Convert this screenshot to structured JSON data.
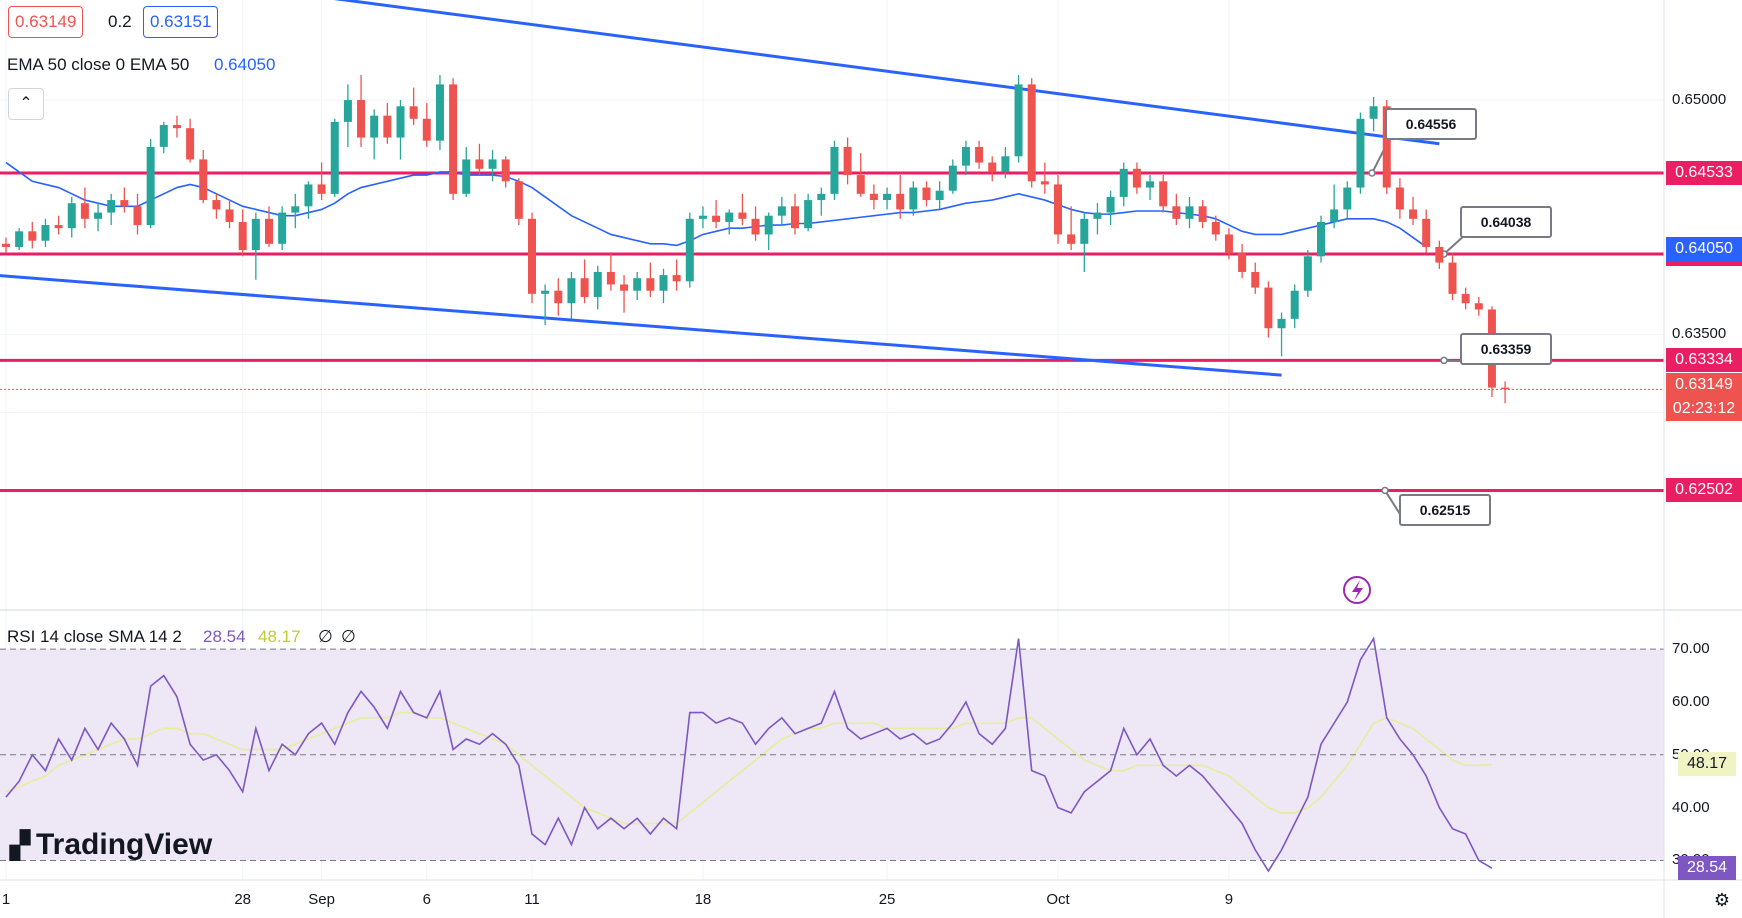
{
  "header": {
    "bid": "0.63149",
    "spread": "0.2",
    "ask": "0.63151",
    "ema_label": "EMA 50 close 0 EMA 50",
    "ema_value": "0.64050",
    "collapse_icon": "chevron-up-icon"
  },
  "rsi_header": {
    "label": "RSI 14 close SMA 14 2",
    "rsi_value": "28.54",
    "sma_value": "48.17",
    "extra1": "∅",
    "extra2": "∅"
  },
  "price_axis": {
    "ticks": [
      "0.65000",
      "0.63500"
    ],
    "tick_values": [
      0.65,
      0.635
    ],
    "range": [
      0.6175,
      0.6564
    ]
  },
  "levels": [
    {
      "value": 0.64533,
      "label": "0.64533",
      "color": "#e91e63"
    },
    {
      "value": 0.64015,
      "label": "0.64015",
      "color": "#e91e63"
    },
    {
      "value": 0.63334,
      "label": "0.63334",
      "color": "#e91e63"
    },
    {
      "value": 0.62502,
      "label": "0.62502",
      "color": "#e91e63"
    }
  ],
  "callouts": [
    "0.64556",
    "0.64038",
    "0.63359",
    "0.62515"
  ],
  "ema_axis_label": "0.64050",
  "last_price": {
    "value": 0.63149,
    "label": "0.63149",
    "countdown": "02:23:12",
    "color": "#ef5350"
  },
  "x_axis": {
    "ticks": [
      "1",
      "28",
      "Sep",
      "6",
      "11",
      "18",
      "25",
      "Oct",
      "9"
    ],
    "tick_index": [
      0,
      18,
      24,
      32,
      40,
      53,
      67,
      80,
      93
    ]
  },
  "rsi_axis": {
    "ticks": [
      "70.00",
      "60.00",
      "50.00",
      "40.00",
      "30.00"
    ],
    "tick_values": [
      70,
      60,
      50,
      40,
      30
    ],
    "range": [
      26.3,
      75.9
    ],
    "rsi_label": "28.54",
    "sma_label": "48.17"
  },
  "colors": {
    "bull": "#26a69a",
    "bear": "#ef5350",
    "ema": "#2962ff",
    "channel": "#2962ff",
    "level": "#e91e63",
    "rsi": "#7e57c2",
    "rsi_sma": "#e6ee9c",
    "rsi_band": "#ede7f6"
  },
  "logo": "TradingView",
  "chart_data": {
    "type": "candlestick",
    "instrument_price_axis": "price",
    "candles_ohlc": [
      [
        0.6408,
        0.6412,
        0.6402,
        0.6406
      ],
      [
        0.6406,
        0.6418,
        0.6404,
        0.6416
      ],
      [
        0.6416,
        0.6422,
        0.6405,
        0.641
      ],
      [
        0.641,
        0.6424,
        0.6406,
        0.642
      ],
      [
        0.642,
        0.6426,
        0.6414,
        0.6418
      ],
      [
        0.6418,
        0.6438,
        0.6412,
        0.6434
      ],
      [
        0.6434,
        0.6444,
        0.6418,
        0.6424
      ],
      [
        0.6424,
        0.6434,
        0.6416,
        0.6428
      ],
      [
        0.6428,
        0.644,
        0.642,
        0.6436
      ],
      [
        0.6436,
        0.6444,
        0.6428,
        0.6432
      ],
      [
        0.6432,
        0.644,
        0.6414,
        0.642
      ],
      [
        0.642,
        0.6475,
        0.6418,
        0.647
      ],
      [
        0.647,
        0.6486,
        0.6466,
        0.6484
      ],
      [
        0.6484,
        0.649,
        0.6476,
        0.6482
      ],
      [
        0.6482,
        0.6488,
        0.646,
        0.6462
      ],
      [
        0.6462,
        0.6468,
        0.6434,
        0.6436
      ],
      [
        0.6436,
        0.644,
        0.6424,
        0.643
      ],
      [
        0.643,
        0.6436,
        0.6418,
        0.6422
      ],
      [
        0.6422,
        0.643,
        0.64,
        0.6404
      ],
      [
        0.6404,
        0.6428,
        0.6385,
        0.6424
      ],
      [
        0.6424,
        0.6432,
        0.6406,
        0.6408
      ],
      [
        0.6408,
        0.6432,
        0.6404,
        0.6428
      ],
      [
        0.6428,
        0.644,
        0.6418,
        0.6432
      ],
      [
        0.6432,
        0.6448,
        0.6424,
        0.6446
      ],
      [
        0.6446,
        0.646,
        0.6436,
        0.644
      ],
      [
        0.644,
        0.6488,
        0.6438,
        0.6486
      ],
      [
        0.6486,
        0.651,
        0.647,
        0.65
      ],
      [
        0.65,
        0.6516,
        0.647,
        0.6476
      ],
      [
        0.6476,
        0.6494,
        0.6462,
        0.649
      ],
      [
        0.649,
        0.6498,
        0.6472,
        0.6476
      ],
      [
        0.6476,
        0.65,
        0.6462,
        0.6496
      ],
      [
        0.6496,
        0.6508,
        0.6484,
        0.6488
      ],
      [
        0.6488,
        0.6498,
        0.647,
        0.6474
      ],
      [
        0.6474,
        0.6516,
        0.6468,
        0.651
      ],
      [
        0.651,
        0.6514,
        0.6436,
        0.644
      ],
      [
        0.644,
        0.647,
        0.6438,
        0.6462
      ],
      [
        0.6462,
        0.6472,
        0.6452,
        0.6456
      ],
      [
        0.6456,
        0.6468,
        0.6448,
        0.6462
      ],
      [
        0.6462,
        0.6464,
        0.6444,
        0.6448
      ],
      [
        0.6448,
        0.645,
        0.642,
        0.6424
      ],
      [
        0.6424,
        0.6428,
        0.637,
        0.6376
      ],
      [
        0.6376,
        0.6382,
        0.6356,
        0.6378
      ],
      [
        0.6378,
        0.6386,
        0.6362,
        0.637
      ],
      [
        0.637,
        0.639,
        0.636,
        0.6386
      ],
      [
        0.6386,
        0.6398,
        0.637,
        0.6374
      ],
      [
        0.6374,
        0.6394,
        0.6366,
        0.639
      ],
      [
        0.639,
        0.6402,
        0.6378,
        0.6382
      ],
      [
        0.6382,
        0.6388,
        0.6364,
        0.6378
      ],
      [
        0.6378,
        0.639,
        0.6372,
        0.6386
      ],
      [
        0.6386,
        0.6396,
        0.6374,
        0.6378
      ],
      [
        0.6378,
        0.6392,
        0.637,
        0.6388
      ],
      [
        0.6388,
        0.6398,
        0.6378,
        0.6384
      ],
      [
        0.6384,
        0.6428,
        0.638,
        0.6424
      ],
      [
        0.6424,
        0.6432,
        0.6418,
        0.6426
      ],
      [
        0.6426,
        0.6436,
        0.6418,
        0.6422
      ],
      [
        0.6422,
        0.643,
        0.6414,
        0.6428
      ],
      [
        0.6428,
        0.644,
        0.642,
        0.6424
      ],
      [
        0.6424,
        0.6432,
        0.641,
        0.6414
      ],
      [
        0.6414,
        0.6428,
        0.6404,
        0.6426
      ],
      [
        0.6426,
        0.6438,
        0.642,
        0.6432
      ],
      [
        0.6432,
        0.644,
        0.6414,
        0.6418
      ],
      [
        0.6418,
        0.644,
        0.6416,
        0.6436
      ],
      [
        0.6436,
        0.6444,
        0.6426,
        0.644
      ],
      [
        0.644,
        0.6474,
        0.6436,
        0.647
      ],
      [
        0.647,
        0.6476,
        0.6446,
        0.6452
      ],
      [
        0.6452,
        0.6466,
        0.6438,
        0.644
      ],
      [
        0.644,
        0.6446,
        0.643,
        0.6436
      ],
      [
        0.6436,
        0.6444,
        0.643,
        0.644
      ],
      [
        0.644,
        0.6452,
        0.6424,
        0.643
      ],
      [
        0.643,
        0.6448,
        0.6426,
        0.6444
      ],
      [
        0.6444,
        0.6448,
        0.6432,
        0.6436
      ],
      [
        0.6436,
        0.6448,
        0.643,
        0.6442
      ],
      [
        0.6442,
        0.6462,
        0.644,
        0.6458
      ],
      [
        0.6458,
        0.6474,
        0.6452,
        0.647
      ],
      [
        0.647,
        0.6474,
        0.6456,
        0.646
      ],
      [
        0.646,
        0.6464,
        0.6448,
        0.6454
      ],
      [
        0.6454,
        0.647,
        0.645,
        0.6464
      ],
      [
        0.6464,
        0.6516,
        0.646,
        0.651
      ],
      [
        0.651,
        0.6514,
        0.6444,
        0.6448
      ],
      [
        0.6448,
        0.646,
        0.644,
        0.6446
      ],
      [
        0.6446,
        0.6452,
        0.6408,
        0.6414
      ],
      [
        0.6414,
        0.6432,
        0.6404,
        0.6408
      ],
      [
        0.6408,
        0.6428,
        0.639,
        0.6424
      ],
      [
        0.6424,
        0.6434,
        0.6414,
        0.6428
      ],
      [
        0.6428,
        0.6442,
        0.642,
        0.6438
      ],
      [
        0.6438,
        0.646,
        0.6432,
        0.6456
      ],
      [
        0.6456,
        0.646,
        0.644,
        0.6444
      ],
      [
        0.6444,
        0.6452,
        0.6436,
        0.6448
      ],
      [
        0.6448,
        0.6452,
        0.6428,
        0.6432
      ],
      [
        0.6432,
        0.644,
        0.642,
        0.6424
      ],
      [
        0.6424,
        0.6438,
        0.6418,
        0.6432
      ],
      [
        0.6432,
        0.6436,
        0.6418,
        0.6422
      ],
      [
        0.6422,
        0.6426,
        0.641,
        0.6414
      ],
      [
        0.6414,
        0.6418,
        0.6398,
        0.6402
      ],
      [
        0.6402,
        0.6408,
        0.6386,
        0.639
      ],
      [
        0.639,
        0.6396,
        0.6376,
        0.638
      ],
      [
        0.638,
        0.6384,
        0.6348,
        0.6354
      ],
      [
        0.6354,
        0.6364,
        0.6336,
        0.636
      ],
      [
        0.636,
        0.6382,
        0.6354,
        0.6378
      ],
      [
        0.6378,
        0.6404,
        0.6374,
        0.64
      ],
      [
        0.64,
        0.6426,
        0.6396,
        0.6422
      ],
      [
        0.6422,
        0.6446,
        0.6418,
        0.643
      ],
      [
        0.643,
        0.6448,
        0.6424,
        0.6444
      ],
      [
        0.6444,
        0.6492,
        0.644,
        0.6488
      ],
      [
        0.6488,
        0.6502,
        0.648,
        0.6496
      ],
      [
        0.6496,
        0.65,
        0.644,
        0.6444
      ],
      [
        0.6444,
        0.645,
        0.6424,
        0.643
      ],
      [
        0.643,
        0.6438,
        0.642,
        0.6424
      ],
      [
        0.6424,
        0.643,
        0.6402,
        0.6406
      ],
      [
        0.6406,
        0.641,
        0.6392,
        0.6396
      ],
      [
        0.6396,
        0.6402,
        0.6372,
        0.6376
      ],
      [
        0.6376,
        0.638,
        0.6366,
        0.637
      ],
      [
        0.637,
        0.6374,
        0.6362,
        0.6366
      ],
      [
        0.6366,
        0.6368,
        0.631,
        0.6316
      ],
      [
        0.6316,
        0.632,
        0.6306,
        0.6315
      ]
    ],
    "ema_50": [
      0.646,
      0.6454,
      0.6448,
      0.6446,
      0.6444,
      0.644,
      0.6436,
      0.6434,
      0.6432,
      0.6432,
      0.6432,
      0.6436,
      0.644,
      0.6444,
      0.6446,
      0.6444,
      0.644,
      0.6436,
      0.6432,
      0.643,
      0.6428,
      0.6426,
      0.6426,
      0.6428,
      0.643,
      0.6434,
      0.644,
      0.6444,
      0.6446,
      0.6448,
      0.645,
      0.6452,
      0.6452,
      0.6454,
      0.6454,
      0.6452,
      0.6452,
      0.6452,
      0.6451,
      0.6448,
      0.6444,
      0.6438,
      0.6432,
      0.6426,
      0.6422,
      0.6418,
      0.6414,
      0.6412,
      0.641,
      0.6408,
      0.6408,
      0.6407,
      0.641,
      0.6414,
      0.6416,
      0.6418,
      0.6418,
      0.6419,
      0.642,
      0.642,
      0.6421,
      0.6421,
      0.6422,
      0.6423,
      0.6424,
      0.6425,
      0.6426,
      0.6427,
      0.6428,
      0.6428,
      0.6429,
      0.643,
      0.6432,
      0.6434,
      0.6435,
      0.6436,
      0.6438,
      0.644,
      0.6438,
      0.6436,
      0.6433,
      0.643,
      0.6428,
      0.6427,
      0.6427,
      0.6428,
      0.6429,
      0.6429,
      0.6429,
      0.6428,
      0.6427,
      0.6426,
      0.6424,
      0.642,
      0.6416,
      0.6414,
      0.6414,
      0.6414,
      0.6416,
      0.6418,
      0.642,
      0.6422,
      0.6424,
      0.6424,
      0.6424,
      0.6422,
      0.6418,
      0.6412,
      0.6406
    ],
    "rsi": [
      42,
      45,
      50,
      47,
      53,
      49,
      55,
      51,
      56,
      53,
      48,
      63,
      65,
      61,
      52,
      49,
      50,
      47,
      43,
      55,
      47,
      52,
      50,
      54,
      56,
      52,
      58,
      62,
      59,
      55,
      62,
      58,
      57,
      62,
      51,
      53,
      52,
      54,
      52,
      48,
      35,
      33,
      38,
      33,
      40,
      36,
      38,
      36,
      38,
      35,
      38,
      36,
      58,
      58,
      56,
      57,
      56,
      52,
      55,
      57,
      54,
      55,
      56,
      62,
      55,
      53,
      54,
      55,
      53,
      54,
      52,
      53,
      56,
      60,
      54,
      52,
      55,
      72,
      47,
      46,
      40,
      39,
      43,
      45,
      47,
      55,
      50,
      53,
      48,
      46,
      48,
      46,
      43,
      40,
      37,
      32,
      28,
      32,
      37,
      42,
      52,
      56,
      60,
      68,
      72,
      57,
      53,
      50,
      46,
      40,
      36,
      35,
      30,
      28.54
    ],
    "rsi_sma": [
      43,
      44,
      45,
      46,
      48,
      49,
      50,
      51,
      52,
      53,
      53,
      54,
      55,
      55,
      54,
      54,
      53,
      52,
      51,
      51,
      51,
      51,
      52,
      53,
      54,
      55,
      56,
      57,
      57,
      57,
      58,
      58,
      57,
      57,
      56,
      55,
      54,
      53,
      52,
      50,
      48,
      46,
      44,
      42,
      40,
      39,
      38,
      37,
      37,
      37,
      37,
      37,
      39,
      41,
      43,
      45,
      47,
      49,
      51,
      53,
      54,
      55,
      55,
      56,
      56,
      56,
      56,
      55,
      55,
      55,
      55,
      55,
      55,
      56,
      56,
      56,
      56,
      57,
      57,
      55,
      53,
      51,
      49,
      48,
      47,
      47,
      48,
      48,
      48,
      48,
      48,
      48,
      47,
      46,
      44,
      42,
      40,
      39,
      39,
      40,
      42,
      45,
      48,
      52,
      56,
      57,
      56,
      55,
      53,
      51,
      49,
      48,
      48,
      48.17
    ],
    "channel_upper": [
      [
        -14,
        0.6608
      ],
      [
        109,
        0.6472
      ]
    ],
    "channel_lower": [
      [
        -1,
        0.6388
      ],
      [
        97,
        0.6324
      ]
    ]
  }
}
